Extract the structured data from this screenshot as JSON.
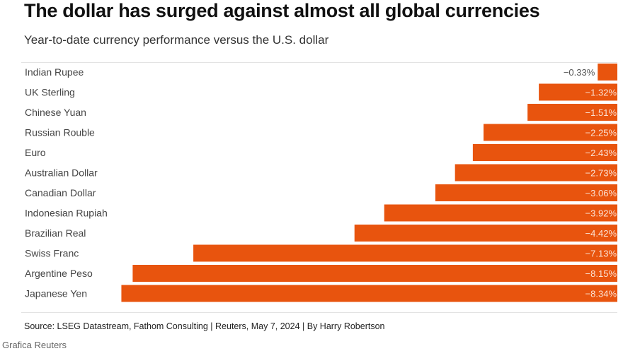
{
  "chart_data": {
    "type": "bar",
    "orientation": "horizontal",
    "title": "The dollar has surged against almost all global currencies",
    "subtitle": "Year-to-date currency performance versus the U.S. dollar",
    "categories": [
      "Indian Rupee",
      "UK Sterling",
      "Chinese Yuan",
      "Russian Rouble",
      "Euro",
      "Australian Dollar",
      "Canadian Dollar",
      "Indonesian Rupiah",
      "Brazilian Real",
      "Swiss Franc",
      "Argentine Peso",
      "Japanese Yen"
    ],
    "values": [
      -0.33,
      -1.32,
      -1.51,
      -2.25,
      -2.43,
      -2.73,
      -3.06,
      -3.92,
      -4.42,
      -7.13,
      -8.15,
      -8.34
    ],
    "value_labels": [
      "−0.33%",
      "−1.32%",
      "−1.51%",
      "−2.25%",
      "−2.43%",
      "−2.73%",
      "−3.06%",
      "−3.92%",
      "−4.42%",
      "−7.13%",
      "−8.15%",
      "−8.34%"
    ],
    "units": "%",
    "xlim": [
      -9,
      0
    ],
    "bar_color": "#e8540e",
    "grid": false,
    "legend": "none"
  },
  "footer": {
    "source": "Source: LSEG Datastream, Fathom Consulting | Reuters, May 7, 2024 | By Harry Robertson",
    "credit": "Grafica Reuters"
  }
}
